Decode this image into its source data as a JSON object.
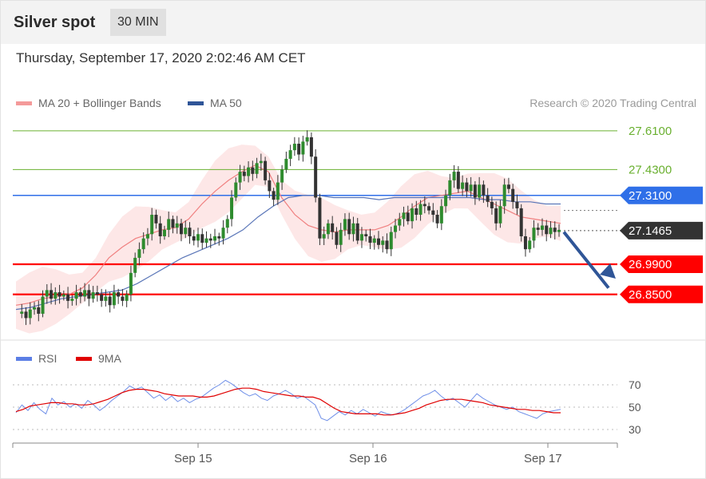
{
  "header": {
    "title": "Silver spot",
    "timeframe": "30 MIN"
  },
  "timestamp": "Thursday, September 17, 2020 2:02:46 AM CET",
  "legend": {
    "ma20": {
      "label": "MA 20 + Bollinger Bands",
      "color": "#f08080"
    },
    "ma50": {
      "label": "MA 50",
      "color": "#2f5597"
    }
  },
  "copyright": "Research © 2020 Trading Central",
  "rsi_legend": {
    "rsi": {
      "label": "RSI",
      "color": "#5b7ee5"
    },
    "ma9": {
      "label": "9MA",
      "color": "#e00000"
    }
  },
  "levels": [
    {
      "label": "27.6100",
      "value": 27.61,
      "kind": "target",
      "color": "#6ab030"
    },
    {
      "label": "27.4300",
      "value": 27.43,
      "kind": "target",
      "color": "#6ab030"
    },
    {
      "label": "27.3100",
      "value": 27.31,
      "kind": "pivot",
      "color": "#2f6fe8"
    },
    {
      "label": "27.1465",
      "value": 27.1465,
      "kind": "last",
      "color": "#333333"
    },
    {
      "label": "26.9900",
      "value": 26.99,
      "kind": "support",
      "color": "#ff0000"
    },
    {
      "label": "26.8500",
      "value": 26.85,
      "kind": "support",
      "color": "#ff0000"
    }
  ],
  "rsi_ticks": [
    "70",
    "50",
    "30"
  ],
  "x_labels": [
    "Sep 15",
    "Sep 16",
    "Sep 17"
  ],
  "chart_data": [
    {
      "type": "line",
      "description_of_series": "30-minute candlesticks with moving averages",
      "ylim": [
        26.66,
        27.68
      ],
      "series": [
        {
          "name": "Price",
          "values": [
            26.76,
            26.77,
            26.74,
            26.78,
            26.79,
            26.76,
            26.84,
            26.87,
            26.83,
            26.86,
            26.84,
            26.85,
            26.82,
            26.83,
            26.86,
            26.84,
            26.87,
            26.83,
            26.86,
            26.85,
            26.82,
            26.84,
            26.8,
            26.86,
            26.84,
            26.82,
            26.85,
            26.95,
            27.02,
            27.06,
            27.11,
            27.13,
            27.22,
            27.18,
            27.12,
            27.15,
            27.2,
            27.16,
            27.18,
            27.13,
            27.16,
            27.12,
            27.1,
            27.13,
            27.09,
            27.11,
            27.1,
            27.12,
            27.11,
            27.16,
            27.2,
            27.3,
            27.37,
            27.42,
            27.4,
            27.44,
            27.41,
            27.46,
            27.47,
            27.38,
            27.33,
            27.29,
            27.37,
            27.43,
            27.48,
            27.52,
            27.55,
            27.5,
            27.56,
            27.58,
            27.49,
            27.3,
            27.11,
            27.13,
            27.18,
            27.14,
            27.08,
            27.15,
            27.2,
            27.13,
            27.18,
            27.1,
            27.13,
            27.12,
            27.09,
            27.11,
            27.08,
            27.1,
            27.06,
            27.14,
            27.17,
            27.2,
            27.23,
            27.19,
            27.25,
            27.22,
            27.27,
            27.26,
            27.24,
            27.22,
            27.18,
            27.26,
            27.31,
            27.38,
            27.42,
            27.34,
            27.37,
            27.33,
            27.36,
            27.3,
            27.36,
            27.31,
            27.28,
            27.25,
            27.18,
            27.26,
            27.36,
            27.34,
            27.28,
            27.25,
            27.12,
            27.06,
            27.1,
            27.16,
            27.15,
            27.17,
            27.13,
            27.16,
            27.14,
            27.15
          ]
        },
        {
          "name": "MA 20",
          "values": [
            26.8,
            26.81,
            26.83,
            26.84,
            26.85,
            26.88,
            26.94,
            27.02,
            27.07,
            27.11,
            27.13,
            27.15,
            27.16,
            27.2,
            27.27,
            27.33,
            27.38,
            27.42,
            27.45,
            27.42,
            27.3,
            27.22,
            27.17,
            27.15,
            27.14,
            27.15,
            27.15,
            27.15,
            27.17,
            27.21,
            27.26,
            27.3,
            27.31,
            27.32,
            27.33,
            27.3,
            27.27,
            27.24,
            27.21,
            27.2,
            27.19,
            27.18
          ]
        },
        {
          "name": "MA 50",
          "values": [
            26.78,
            26.79,
            26.81,
            26.83,
            26.84,
            26.85,
            26.86,
            26.87,
            26.9,
            26.94,
            26.98,
            27.02,
            27.05,
            27.08,
            27.11,
            27.15,
            27.21,
            27.26,
            27.3,
            27.31,
            27.31,
            27.3,
            27.3,
            27.3,
            27.29,
            27.3,
            27.3,
            27.3,
            27.3,
            27.3,
            27.3,
            27.29,
            27.29,
            27.28,
            27.28,
            27.27,
            27.27
          ]
        }
      ]
    },
    {
      "type": "line",
      "ylim": [
        20,
        80
      ],
      "series": [
        {
          "name": "RSI",
          "values": [
            45,
            52,
            47,
            54,
            48,
            44,
            58,
            52,
            55,
            50,
            53,
            49,
            56,
            52,
            47,
            51,
            56,
            60,
            64,
            69,
            66,
            68,
            63,
            58,
            61,
            56,
            60,
            55,
            58,
            54,
            57,
            59,
            63,
            67,
            70,
            74,
            71,
            67,
            63,
            60,
            62,
            58,
            56,
            60,
            62,
            65,
            62,
            58,
            60,
            56,
            52,
            40,
            38,
            42,
            46,
            43,
            47,
            44,
            48,
            45,
            42,
            46,
            44,
            43,
            45,
            48,
            52,
            56,
            60,
            62,
            65,
            60,
            56,
            58,
            54,
            50,
            56,
            62,
            58,
            55,
            52,
            50,
            48,
            50,
            46,
            44,
            42,
            40,
            44,
            46,
            47,
            48
          ]
        },
        {
          "name": "9MA",
          "values": [
            46,
            48,
            51,
            52,
            53,
            54,
            54,
            53,
            53,
            52,
            52,
            53,
            55,
            57,
            60,
            63,
            65,
            66,
            66,
            65,
            64,
            62,
            61,
            60,
            60,
            60,
            59,
            59,
            60,
            62,
            64,
            66,
            67,
            67,
            66,
            64,
            63,
            62,
            61,
            60,
            60,
            59,
            59,
            57,
            53,
            49,
            46,
            45,
            44,
            44,
            44,
            44,
            43,
            43,
            44,
            45,
            47,
            49,
            52,
            54,
            56,
            57,
            57,
            57,
            56,
            55,
            54,
            52,
            51,
            50,
            49,
            48,
            48,
            47,
            47,
            46,
            45,
            45
          ]
        }
      ]
    }
  ]
}
